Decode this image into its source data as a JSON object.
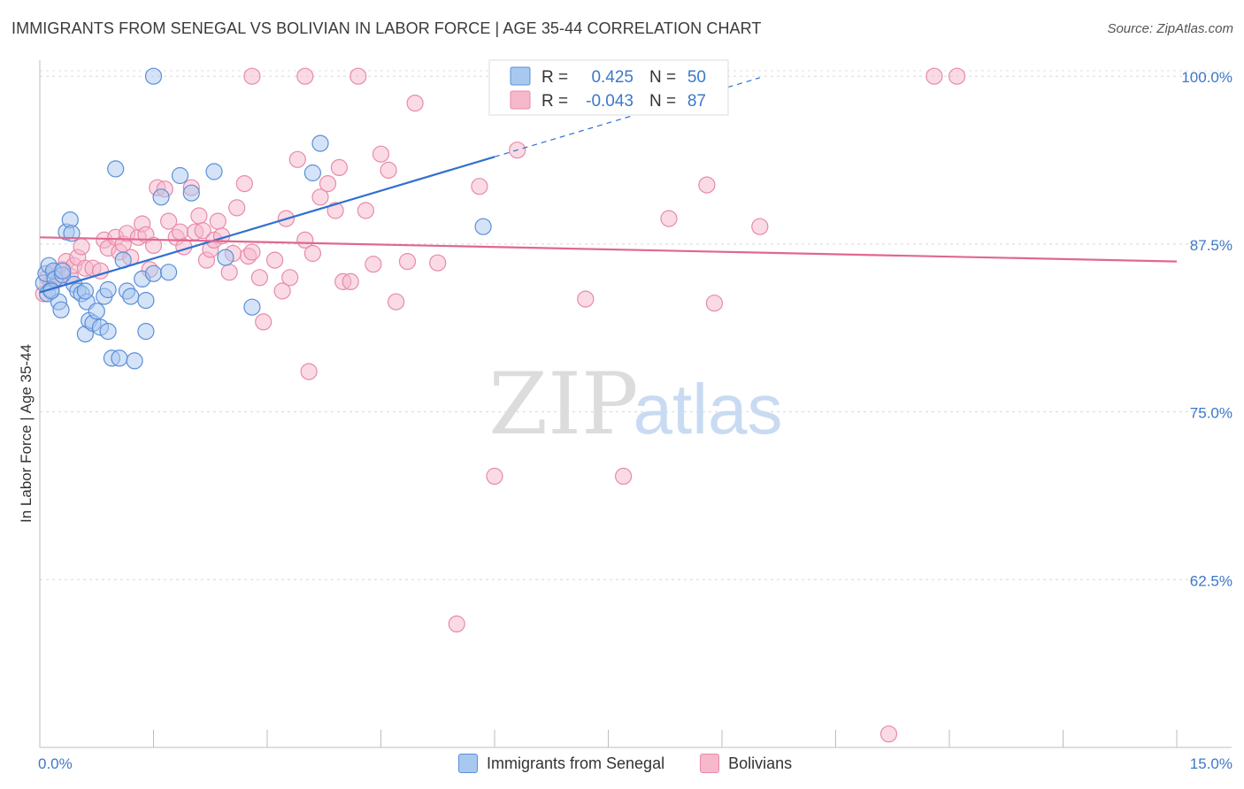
{
  "header": {
    "title": "IMMIGRANTS FROM SENEGAL VS BOLIVIAN IN LABOR FORCE | AGE 35-44 CORRELATION CHART",
    "source": "Source: ZipAtlas.com"
  },
  "watermark": {
    "zip": "ZIP",
    "atlas": "atlas"
  },
  "colors": {
    "senegal_fill": "#a9c8f0",
    "senegal_stroke": "#5b8fd8",
    "senegal_line": "#3070d0",
    "bolivian_fill": "#f6b8cb",
    "bolivian_stroke": "#e88aa8",
    "bolivian_line": "#e06890",
    "axis_value_text": "#3c78c8"
  },
  "stats_legend": [
    {
      "r_label": "R =",
      "r_value": "0.425",
      "n_label": "N =",
      "n_value": "50"
    },
    {
      "r_label": "R =",
      "r_value": "-0.043",
      "n_label": "N =",
      "n_value": "87"
    }
  ],
  "chart_data": {
    "type": "scatter",
    "title": "IMMIGRANTS FROM SENEGAL VS BOLIVIAN IN LABOR FORCE | AGE 35-44 CORRELATION CHART",
    "xlabel": "",
    "ylabel": "In Labor Force | Age 35-44",
    "xlim": [
      0,
      15
    ],
    "ylim": [
      50,
      101.2
    ],
    "x_tick_labels": [
      "0.0%",
      "15.0%"
    ],
    "y_ticks": [
      62.5,
      75.0,
      87.5,
      100.0
    ],
    "y_tick_labels": [
      "62.5%",
      "75.0%",
      "87.5%",
      "100.0%"
    ],
    "grid": true,
    "legend_position": "bottom",
    "series": [
      {
        "name": "Immigrants from Senegal",
        "r": 0.425,
        "n": 50,
        "trend": {
          "x0": 0.0,
          "y0": 83.9,
          "x1": 6.0,
          "y1": 94.0,
          "x_ext": 9.5
        },
        "points": [
          [
            0.05,
            84.6
          ],
          [
            0.08,
            85.3
          ],
          [
            0.1,
            83.8
          ],
          [
            0.12,
            85.9
          ],
          [
            0.15,
            84.1
          ],
          [
            0.18,
            85.5
          ],
          [
            0.2,
            84.9
          ],
          [
            0.25,
            83.2
          ],
          [
            0.28,
            82.6
          ],
          [
            0.3,
            85.2
          ],
          [
            0.35,
            88.4
          ],
          [
            0.4,
            89.3
          ],
          [
            0.42,
            88.3
          ],
          [
            0.45,
            84.5
          ],
          [
            0.5,
            84.0
          ],
          [
            0.55,
            83.8
          ],
          [
            0.6,
            80.8
          ],
          [
            0.62,
            83.2
          ],
          [
            0.65,
            81.8
          ],
          [
            0.7,
            81.6
          ],
          [
            0.75,
            82.5
          ],
          [
            0.8,
            81.3
          ],
          [
            0.85,
            83.6
          ],
          [
            0.9,
            81.0
          ],
          [
            0.9,
            84.1
          ],
          [
            0.95,
            79.0
          ],
          [
            1.0,
            93.1
          ],
          [
            1.05,
            79.0
          ],
          [
            1.1,
            86.3
          ],
          [
            1.15,
            84.0
          ],
          [
            1.2,
            83.6
          ],
          [
            1.25,
            78.8
          ],
          [
            1.35,
            84.9
          ],
          [
            1.4,
            81.0
          ],
          [
            1.4,
            83.3
          ],
          [
            1.5,
            85.3
          ],
          [
            1.5,
            100.0
          ],
          [
            1.6,
            91.0
          ],
          [
            1.7,
            85.4
          ],
          [
            1.85,
            92.6
          ],
          [
            2.0,
            91.3
          ],
          [
            2.3,
            92.9
          ],
          [
            2.45,
            86.5
          ],
          [
            2.8,
            82.8
          ],
          [
            3.6,
            92.8
          ],
          [
            3.7,
            95.0
          ],
          [
            5.85,
            88.8
          ],
          [
            0.15,
            84.0
          ],
          [
            0.3,
            85.5
          ],
          [
            0.6,
            84.0
          ]
        ]
      },
      {
        "name": "Bolivians",
        "r": -0.043,
        "n": 87,
        "trend": {
          "x0": 0.0,
          "y0": 88.0,
          "x1": 15.0,
          "y1": 86.2
        },
        "points": [
          [
            0.05,
            83.8
          ],
          [
            0.1,
            85.0
          ],
          [
            0.15,
            84.6
          ],
          [
            0.2,
            85.4
          ],
          [
            0.25,
            84.9
          ],
          [
            0.3,
            85.6
          ],
          [
            0.35,
            86.2
          ],
          [
            0.4,
            85.1
          ],
          [
            0.45,
            85.9
          ],
          [
            0.5,
            86.5
          ],
          [
            0.55,
            87.3
          ],
          [
            0.6,
            85.7
          ],
          [
            0.7,
            85.7
          ],
          [
            0.8,
            85.5
          ],
          [
            0.85,
            87.8
          ],
          [
            0.9,
            87.2
          ],
          [
            1.0,
            88.0
          ],
          [
            1.05,
            86.9
          ],
          [
            1.1,
            87.5
          ],
          [
            1.15,
            88.3
          ],
          [
            1.2,
            86.5
          ],
          [
            1.3,
            88.0
          ],
          [
            1.35,
            89.0
          ],
          [
            1.4,
            88.2
          ],
          [
            1.45,
            85.6
          ],
          [
            1.5,
            87.4
          ],
          [
            1.55,
            91.7
          ],
          [
            1.65,
            91.6
          ],
          [
            1.7,
            89.2
          ],
          [
            1.8,
            88.0
          ],
          [
            1.85,
            88.4
          ],
          [
            1.9,
            87.3
          ],
          [
            2.0,
            91.7
          ],
          [
            2.05,
            88.4
          ],
          [
            2.1,
            89.6
          ],
          [
            2.15,
            88.5
          ],
          [
            2.2,
            86.3
          ],
          [
            2.25,
            87.1
          ],
          [
            2.3,
            87.8
          ],
          [
            2.35,
            89.2
          ],
          [
            2.4,
            88.1
          ],
          [
            2.5,
            85.4
          ],
          [
            2.55,
            86.8
          ],
          [
            2.6,
            90.2
          ],
          [
            2.7,
            92.0
          ],
          [
            2.75,
            86.6
          ],
          [
            2.8,
            86.9
          ],
          [
            2.9,
            85.0
          ],
          [
            2.95,
            81.7
          ],
          [
            3.1,
            86.3
          ],
          [
            3.2,
            84.0
          ],
          [
            3.25,
            89.4
          ],
          [
            3.3,
            85.0
          ],
          [
            3.4,
            93.8
          ],
          [
            3.5,
            87.8
          ],
          [
            3.55,
            78.0
          ],
          [
            3.6,
            86.8
          ],
          [
            3.7,
            91.0
          ],
          [
            3.8,
            92.0
          ],
          [
            3.9,
            90.0
          ],
          [
            3.95,
            93.2
          ],
          [
            4.0,
            84.7
          ],
          [
            4.1,
            84.7
          ],
          [
            4.3,
            90.0
          ],
          [
            4.4,
            86.0
          ],
          [
            4.5,
            94.2
          ],
          [
            4.6,
            93.0
          ],
          [
            4.7,
            83.2
          ],
          [
            4.85,
            86.2
          ],
          [
            4.95,
            98.0
          ],
          [
            5.25,
            86.1
          ],
          [
            5.8,
            91.8
          ],
          [
            6.0,
            70.2
          ],
          [
            6.3,
            94.5
          ],
          [
            7.2,
            83.4
          ],
          [
            7.7,
            70.2
          ],
          [
            8.3,
            89.4
          ],
          [
            8.8,
            91.9
          ],
          [
            8.9,
            83.1
          ],
          [
            9.5,
            88.8
          ],
          [
            11.2,
            51.0
          ],
          [
            11.8,
            100.0
          ],
          [
            12.1,
            100.0
          ],
          [
            5.5,
            59.2
          ],
          [
            4.2,
            100.0
          ],
          [
            3.5,
            100.0
          ],
          [
            2.8,
            100.0
          ]
        ]
      }
    ]
  }
}
